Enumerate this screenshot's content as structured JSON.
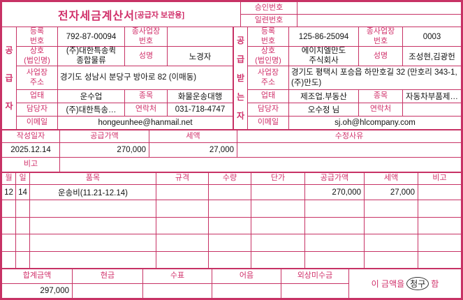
{
  "title": {
    "main": "전자세금계산서",
    "sub": "[공급자 보관용]"
  },
  "approval": {
    "approval_no_label": "승인번호",
    "approval_no": "",
    "serial_no_label": "일련번호",
    "serial_no": ""
  },
  "supplier": {
    "side_label": "공급자",
    "reg_no_label": "등록\n번호",
    "reg_no": "792-87-00094",
    "sub_biz_label": "종사업장\n번호",
    "sub_biz_no": "",
    "company_label": "상호\n(법인명)",
    "company": "(주)대한특송퀵\n종합물류",
    "name_label": "성명",
    "name": "노경자",
    "address_label": "사업장\n주소",
    "address": "경기도 성남시 분당구 방아로 82 (이매동)",
    "biz_type_label": "업태",
    "biz_type": "운수업",
    "biz_item_label": "종목",
    "biz_item": "화물운송대행",
    "contact_label": "담당자",
    "contact": "(주)대한특송…",
    "phone_label": "연락처",
    "phone": "031-718-4747",
    "email_label": "이메일",
    "email": "hongeunhee@hanmail.net"
  },
  "buyer": {
    "side_label": "공급받는자",
    "reg_no_label": "등록\n번호",
    "reg_no": "125-86-25094",
    "sub_biz_label": "종사업장\n번호",
    "sub_biz_no": "0003",
    "company_label": "상호\n(법인명)",
    "company": "에이치엘만도\n주식회사",
    "name_label": "성명",
    "name": "조성현,김광헌",
    "address_label": "사업장\n주소",
    "address": "경기도 평택시 포승읍 하만호길 32 (만호리 343-1,(주)만도)",
    "biz_type_label": "업태",
    "biz_type": "제조업.부동산",
    "biz_item_label": "종목",
    "biz_item": "자동차부품제…",
    "contact_label": "담당자",
    "contact": "오수정 님",
    "phone_label": "연락처",
    "phone": "",
    "email_label": "이메일",
    "email": "sj.oh@hlcompany.com"
  },
  "summary": {
    "date_label": "작성일자",
    "date": "2025.12.14",
    "supply_label": "공급가액",
    "supply": "270,000",
    "tax_label": "세액",
    "tax": "27,000",
    "revision_label": "수정사유",
    "revision": "",
    "note_label": "비고",
    "note": ""
  },
  "items": {
    "headers": [
      "월",
      "일",
      "품목",
      "규격",
      "수량",
      "단가",
      "공급가액",
      "세액",
      "비고"
    ],
    "rows": [
      {
        "month": "12",
        "day": "14",
        "name": "운송비(11.21-12.14)",
        "spec": "",
        "qty": "",
        "price": "",
        "supply": "270,000",
        "tax": "27,000",
        "note": ""
      }
    ]
  },
  "totals": {
    "total_label": "합계금액",
    "total": "297,000",
    "cash_label": "현금",
    "cash": "",
    "check_label": "수표",
    "check": "",
    "bill_label": "어음",
    "bill": "",
    "credit_label": "외상미수금",
    "credit": "",
    "claim_prefix": "이 금액을",
    "claim_word": "청구",
    "claim_suffix": "함"
  },
  "colors": {
    "border": "#c73265",
    "label": "#d0306a",
    "value": "#111111"
  }
}
